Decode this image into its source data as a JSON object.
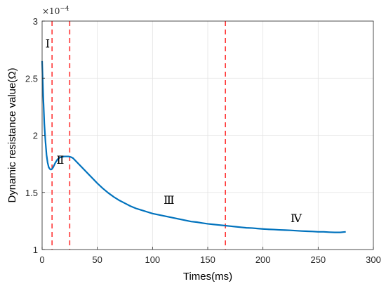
{
  "chart_data": {
    "type": "line",
    "xlabel": "Times(ms)",
    "ylabel": "Dynamic resistance value(Ω)",
    "multiplier_base": "×10",
    "multiplier_exponent": "−4",
    "xlim": [
      0,
      300
    ],
    "ylim": [
      1,
      3
    ],
    "xticks": [
      0,
      50,
      100,
      150,
      200,
      250,
      300
    ],
    "yticks": [
      1,
      1.5,
      2,
      2.5,
      3
    ],
    "ytick_labels": [
      "1",
      "1.5",
      "2",
      "2.5",
      "3"
    ],
    "grid": true,
    "series": [
      {
        "color": "#0072BD",
        "x": [
          0,
          1,
          2,
          3,
          4,
          5,
          6,
          7,
          8,
          9,
          10,
          12,
          14,
          16,
          18,
          20,
          22,
          24,
          26,
          28,
          30,
          35,
          40,
          45,
          50,
          55,
          60,
          65,
          70,
          75,
          80,
          85,
          90,
          95,
          100,
          105,
          110,
          115,
          120,
          125,
          130,
          135,
          140,
          145,
          150,
          155,
          160,
          165,
          170,
          175,
          180,
          185,
          190,
          195,
          200,
          205,
          210,
          215,
          220,
          225,
          230,
          235,
          240,
          245,
          250,
          255,
          260,
          265,
          270,
          275
        ],
        "y": [
          2.65,
          2.35,
          2.1,
          1.95,
          1.83,
          1.76,
          1.72,
          1.705,
          1.7,
          1.705,
          1.72,
          1.76,
          1.79,
          1.805,
          1.81,
          1.815,
          1.815,
          1.815,
          1.81,
          1.8,
          1.78,
          1.73,
          1.68,
          1.63,
          1.58,
          1.535,
          1.495,
          1.46,
          1.43,
          1.405,
          1.38,
          1.36,
          1.345,
          1.33,
          1.315,
          1.305,
          1.295,
          1.285,
          1.275,
          1.265,
          1.255,
          1.245,
          1.24,
          1.232,
          1.225,
          1.22,
          1.215,
          1.21,
          1.205,
          1.2,
          1.195,
          1.19,
          1.188,
          1.184,
          1.18,
          1.177,
          1.175,
          1.172,
          1.17,
          1.168,
          1.165,
          1.162,
          1.16,
          1.158,
          1.155,
          1.155,
          1.152,
          1.15,
          1.15,
          1.155
        ]
      }
    ],
    "vlines": {
      "color": "#FF3333",
      "x": [
        9,
        25,
        166
      ]
    },
    "annotations": [
      {
        "text": "Ⅰ",
        "x": 3,
        "y": 2.77
      },
      {
        "text": "Ⅱ",
        "x": 13,
        "y": 1.75
      },
      {
        "text": "Ⅲ",
        "x": 110,
        "y": 1.4
      },
      {
        "text": "Ⅳ",
        "x": 225,
        "y": 1.24
      }
    ]
  }
}
